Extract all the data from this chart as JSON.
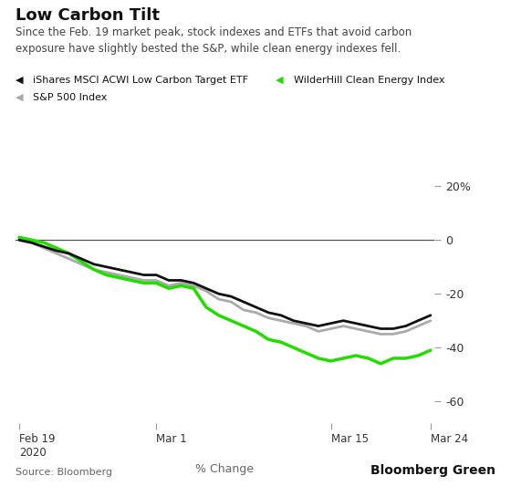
{
  "title": "Low Carbon Tilt",
  "subtitle": "Since the Feb. 19 market peak, stock indexes and ETFs that avoid carbon\nexposure have slightly bested the S&P, while clean energy indexes fell.",
  "xlabel": "% Change",
  "source": "Source: Bloomberg",
  "watermark": "Bloomberg Green",
  "legend": [
    {
      "label": "iShares MSCI ACWI Low Carbon Target ETF",
      "color": "#111111",
      "lw": 2.0
    },
    {
      "label": "WilderHill Clean Energy Index",
      "color": "#22dd00",
      "lw": 2.5
    },
    {
      "label": "S&P 500 Index",
      "color": "#aaaaaa",
      "lw": 2.0
    }
  ],
  "ylim": [
    -68,
    26
  ],
  "yticks": [
    20,
    0,
    -20,
    -40,
    -60
  ],
  "ytick_labels": [
    "20%",
    "0",
    "-20",
    "-40",
    "-60"
  ],
  "x_dates": [
    0,
    1,
    2,
    3,
    4,
    5,
    6,
    7,
    8,
    9,
    10,
    11,
    12,
    13,
    14,
    15,
    16,
    17,
    18,
    19,
    20,
    21,
    22,
    23,
    24,
    25,
    26,
    27,
    28,
    29,
    30,
    31,
    32,
    33
  ],
  "xtick_positions": [
    0,
    11,
    25,
    33
  ],
  "xtick_labels": [
    "Feb 19\n2020",
    "Mar 1",
    "Mar 15",
    "Mar 24"
  ],
  "low_carbon": [
    0,
    -1,
    -2.5,
    -4,
    -5,
    -7,
    -9,
    -10,
    -11,
    -12,
    -13,
    -13,
    -15,
    -15,
    -16,
    -18,
    -20,
    -21,
    -23,
    -25,
    -27,
    -28,
    -30,
    -31,
    -32,
    -31,
    -30,
    -31,
    -32,
    -33,
    -33,
    -32,
    -30,
    -28
  ],
  "clean_energy": [
    1,
    0,
    -1,
    -3,
    -5,
    -8,
    -11,
    -13,
    -14,
    -15,
    -16,
    -16,
    -18,
    -17,
    -18,
    -25,
    -28,
    -30,
    -32,
    -34,
    -37,
    -38,
    -40,
    -42,
    -44,
    -45,
    -44,
    -43,
    -44,
    -46,
    -44,
    -44,
    -43,
    -41
  ],
  "sp500": [
    0,
    -1,
    -3,
    -5,
    -7,
    -9,
    -11,
    -12,
    -13,
    -14,
    -15,
    -15,
    -17,
    -16,
    -17,
    -19,
    -22,
    -23,
    -26,
    -27,
    -29,
    -30,
    -31,
    -32,
    -34,
    -33,
    -32,
    -33,
    -34,
    -35,
    -35,
    -34,
    -32,
    -30
  ],
  "background_color": "#ffffff",
  "zero_line_color": "#555555",
  "tick_color": "#999999"
}
